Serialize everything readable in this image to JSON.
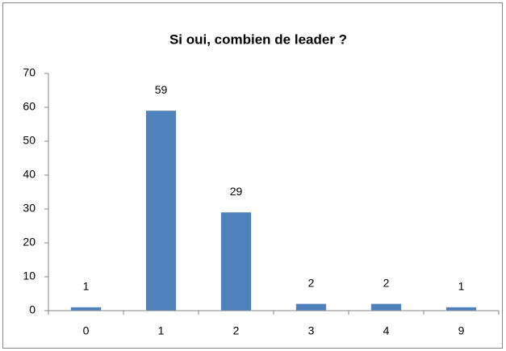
{
  "chart_data": {
    "type": "bar",
    "title": "Si oui, combien de leader ?",
    "categories": [
      "0",
      "1",
      "2",
      "3",
      "4",
      "9"
    ],
    "values": [
      1,
      59,
      29,
      2,
      2,
      1
    ],
    "color": "#4f81bd",
    "ylim": [
      0,
      70
    ],
    "yticks": [
      0,
      10,
      20,
      30,
      40,
      50,
      60,
      70
    ],
    "grid": false,
    "data_labels": true
  }
}
